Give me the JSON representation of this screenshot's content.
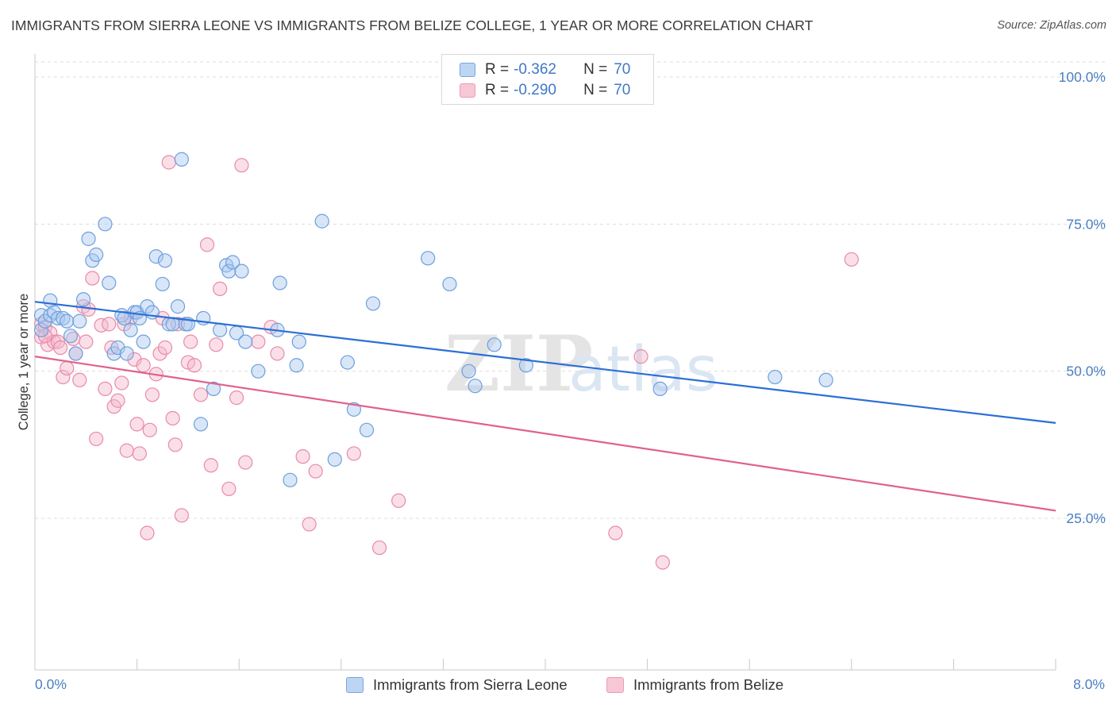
{
  "header": {
    "title": "IMMIGRANTS FROM SIERRA LEONE VS IMMIGRANTS FROM BELIZE COLLEGE, 1 YEAR OR MORE CORRELATION CHART",
    "source": "Source: ZipAtlas.com"
  },
  "watermark": {
    "zip": "ZIP",
    "atlas": "atlas"
  },
  "legend": {
    "rows": [
      {
        "r_label": "R =",
        "r_value": "-0.362",
        "n_label": "N =",
        "n_value": "70"
      },
      {
        "r_label": "R =",
        "r_value": "-0.290",
        "n_label": "N =",
        "n_value": "70"
      }
    ]
  },
  "bottom_legend": {
    "series_a": "Immigrants from Sierra Leone",
    "series_b": "Immigrants from Belize"
  },
  "colors": {
    "blue_fill": "#a9c8ef",
    "blue_stroke": "#6f9fdc",
    "blue_line": "#2b6fd6",
    "pink_fill": "#f5b8cb",
    "pink_stroke": "#ea8aa8",
    "pink_line": "#e0628c",
    "grid": "#dddddd",
    "axis_text": "#4a7fc1"
  },
  "chart_data": {
    "type": "scatter",
    "title": "IMMIGRANTS FROM SIERRA LEONE VS IMMIGRANTS FROM BELIZE COLLEGE, 1 YEAR OR MORE CORRELATION CHART",
    "xlabel": "",
    "ylabel": "College, 1 year or more",
    "xlim": [
      0,
      8
    ],
    "ylim": [
      0,
      105
    ],
    "x_tick_labels": [
      "0.0%",
      "8.0%"
    ],
    "y_ticks": [
      25,
      50,
      75,
      100
    ],
    "y_tick_labels": [
      "25.0%",
      "50.0%",
      "75.0%",
      "100.0%"
    ],
    "grid": true,
    "legend_position": "top-center",
    "series": [
      {
        "name": "Immigrants from Sierra Leone",
        "r": -0.362,
        "n": 70,
        "trend": {
          "x": [
            0,
            8
          ],
          "y": [
            61.8,
            41.2
          ]
        },
        "points": [
          [
            0.05,
            59.5
          ],
          [
            0.05,
            57.0
          ],
          [
            0.08,
            58.5
          ],
          [
            0.12,
            62.0
          ],
          [
            0.12,
            59.5
          ],
          [
            0.15,
            60.0
          ],
          [
            0.18,
            59.0
          ],
          [
            0.22,
            59.0
          ],
          [
            0.25,
            58.5
          ],
          [
            0.28,
            56.0
          ],
          [
            0.32,
            53.0
          ],
          [
            0.35,
            58.5
          ],
          [
            0.38,
            62.2
          ],
          [
            0.42,
            72.5
          ],
          [
            0.45,
            68.8
          ],
          [
            0.48,
            69.8
          ],
          [
            0.55,
            75.0
          ],
          [
            0.58,
            65.0
          ],
          [
            0.62,
            53.0
          ],
          [
            0.65,
            54.0
          ],
          [
            0.68,
            59.5
          ],
          [
            0.7,
            59.0
          ],
          [
            0.72,
            53.0
          ],
          [
            0.75,
            57.0
          ],
          [
            0.78,
            60.0
          ],
          [
            0.8,
            60.0
          ],
          [
            0.82,
            59.0
          ],
          [
            0.85,
            55.0
          ],
          [
            0.88,
            61.0
          ],
          [
            0.92,
            60.0
          ],
          [
            0.95,
            69.5
          ],
          [
            1.0,
            64.8
          ],
          [
            1.02,
            68.8
          ],
          [
            1.05,
            58.0
          ],
          [
            1.08,
            58.0
          ],
          [
            1.12,
            61.0
          ],
          [
            1.15,
            86.0
          ],
          [
            1.18,
            58.0
          ],
          [
            1.2,
            58.0
          ],
          [
            1.3,
            41.0
          ],
          [
            1.32,
            59.0
          ],
          [
            1.4,
            47.0
          ],
          [
            1.45,
            57.0
          ],
          [
            1.5,
            68.0
          ],
          [
            1.52,
            67.0
          ],
          [
            1.55,
            68.5
          ],
          [
            1.58,
            56.5
          ],
          [
            1.62,
            67.0
          ],
          [
            1.65,
            55.0
          ],
          [
            1.75,
            50.0
          ],
          [
            1.9,
            57.0
          ],
          [
            1.92,
            65.0
          ],
          [
            2.0,
            31.5
          ],
          [
            2.05,
            51.0
          ],
          [
            2.07,
            55.0
          ],
          [
            2.25,
            75.5
          ],
          [
            2.35,
            35.0
          ],
          [
            2.45,
            51.5
          ],
          [
            2.5,
            43.5
          ],
          [
            2.6,
            40.0
          ],
          [
            2.65,
            61.5
          ],
          [
            3.08,
            69.2
          ],
          [
            3.25,
            64.8
          ],
          [
            3.4,
            50.0
          ],
          [
            3.45,
            47.5
          ],
          [
            3.6,
            54.5
          ],
          [
            3.85,
            51.0
          ],
          [
            4.9,
            47.0
          ],
          [
            5.8,
            49.0
          ],
          [
            6.2,
            48.5
          ]
        ]
      },
      {
        "name": "Immigrants from Belize",
        "r": -0.29,
        "n": 70,
        "trend": {
          "x": [
            0,
            8
          ],
          "y": [
            52.5,
            26.3
          ]
        },
        "points": [
          [
            0.05,
            58.0
          ],
          [
            0.05,
            55.8
          ],
          [
            0.08,
            57.5
          ],
          [
            0.1,
            54.5
          ],
          [
            0.12,
            56.5
          ],
          [
            0.15,
            55.0
          ],
          [
            0.18,
            55.0
          ],
          [
            0.2,
            54.0
          ],
          [
            0.22,
            49.0
          ],
          [
            0.25,
            50.5
          ],
          [
            0.3,
            55.5
          ],
          [
            0.32,
            53.0
          ],
          [
            0.35,
            48.5
          ],
          [
            0.38,
            61.0
          ],
          [
            0.4,
            55.0
          ],
          [
            0.42,
            60.5
          ],
          [
            0.45,
            65.8
          ],
          [
            0.48,
            38.5
          ],
          [
            0.52,
            57.8
          ],
          [
            0.55,
            47.0
          ],
          [
            0.58,
            58.0
          ],
          [
            0.6,
            54.0
          ],
          [
            0.62,
            44.0
          ],
          [
            0.65,
            45.0
          ],
          [
            0.68,
            48.0
          ],
          [
            0.7,
            58.0
          ],
          [
            0.72,
            36.5
          ],
          [
            0.75,
            59.0
          ],
          [
            0.78,
            52.0
          ],
          [
            0.8,
            41.0
          ],
          [
            0.82,
            36.0
          ],
          [
            0.85,
            51.0
          ],
          [
            0.88,
            22.5
          ],
          [
            0.9,
            40.0
          ],
          [
            0.92,
            46.0
          ],
          [
            0.95,
            49.5
          ],
          [
            0.98,
            53.0
          ],
          [
            1.0,
            59.0
          ],
          [
            1.02,
            54.0
          ],
          [
            1.05,
            85.5
          ],
          [
            1.08,
            42.0
          ],
          [
            1.1,
            37.5
          ],
          [
            1.12,
            58.0
          ],
          [
            1.15,
            25.5
          ],
          [
            1.2,
            51.5
          ],
          [
            1.22,
            55.0
          ],
          [
            1.25,
            51.0
          ],
          [
            1.3,
            46.0
          ],
          [
            1.35,
            71.5
          ],
          [
            1.38,
            34.0
          ],
          [
            1.42,
            54.5
          ],
          [
            1.45,
            64.0
          ],
          [
            1.52,
            30.0
          ],
          [
            1.58,
            45.5
          ],
          [
            1.62,
            85.0
          ],
          [
            1.65,
            34.5
          ],
          [
            1.75,
            55.0
          ],
          [
            1.85,
            57.5
          ],
          [
            1.9,
            53.0
          ],
          [
            2.1,
            35.5
          ],
          [
            2.15,
            24.0
          ],
          [
            2.2,
            33.0
          ],
          [
            2.5,
            36.0
          ],
          [
            2.7,
            20.0
          ],
          [
            2.85,
            28.0
          ],
          [
            4.55,
            22.5
          ],
          [
            4.75,
            52.5
          ],
          [
            4.92,
            17.5
          ],
          [
            6.4,
            69.0
          ],
          [
            0.08,
            56.0
          ]
        ]
      }
    ]
  }
}
